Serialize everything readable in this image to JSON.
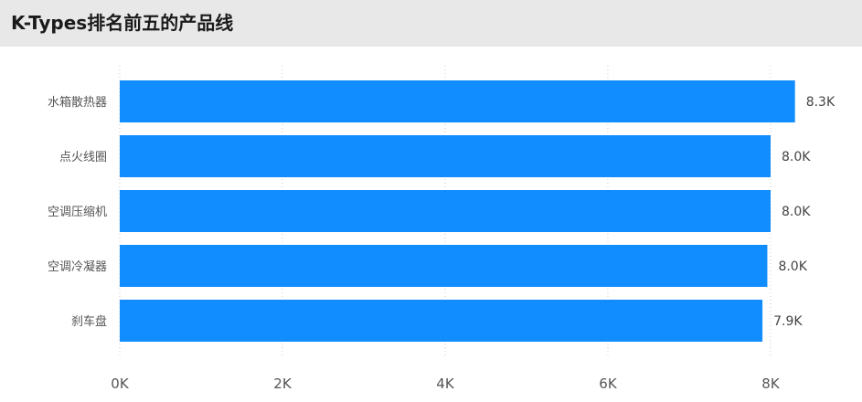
{
  "header": {
    "title": "K-Types排名前五的产品线"
  },
  "chart_data": {
    "type": "bar",
    "orientation": "horizontal",
    "title": "K-Types排名前五的产品线",
    "xlabel": "",
    "ylabel": "",
    "categories": [
      "水箱散热器",
      "点火线圈",
      "空调压缩机",
      "空调冷凝器",
      "刹车盘"
    ],
    "values": [
      8300,
      8000,
      8000,
      7960,
      7900
    ],
    "data_labels": [
      "8.3K",
      "8.0K",
      "8.0K",
      "8.0K",
      "7.9K"
    ],
    "xlim": [
      0,
      8000
    ],
    "x_ticks": [
      0,
      2000,
      4000,
      6000,
      8000
    ],
    "x_tick_labels": [
      "0K",
      "2K",
      "4K",
      "6K",
      "8K"
    ],
    "grid": "vertical dotted",
    "bar_color": "#118dff",
    "legend": "none"
  }
}
